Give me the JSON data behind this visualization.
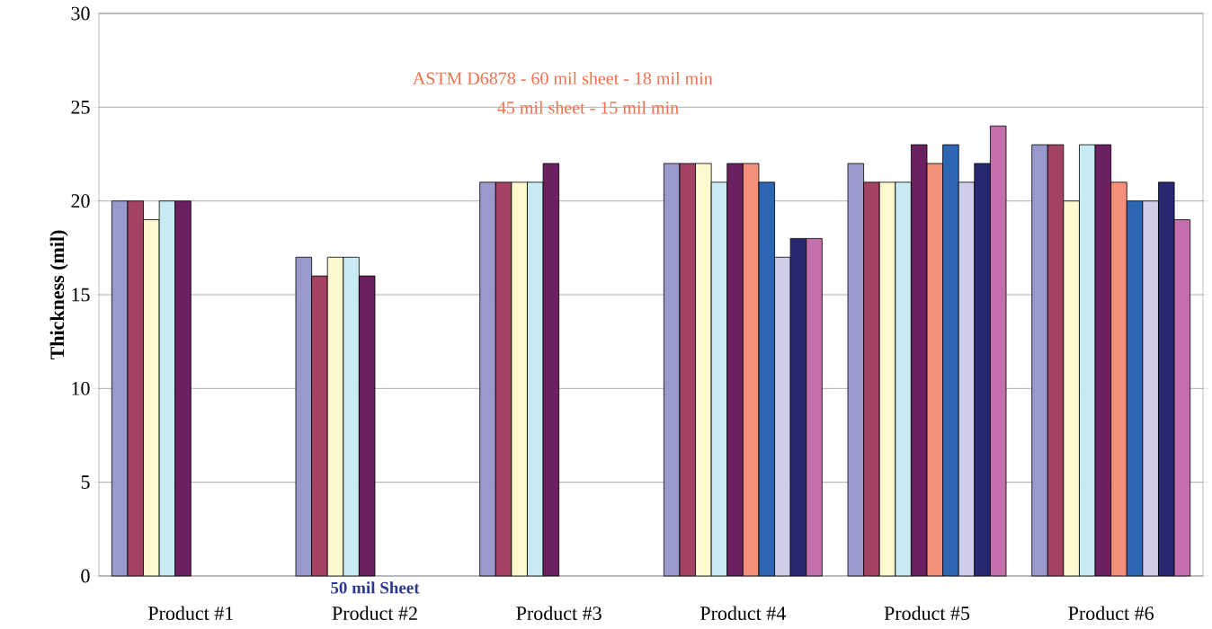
{
  "chart_data": {
    "type": "bar",
    "ylabel": "Thickness (mil)",
    "categories": [
      "Product #1",
      "Product #2",
      "Product #3",
      "Product #4",
      "Product #5",
      "Product #6"
    ],
    "series": [
      {
        "color": "#9999cc",
        "values": [
          20,
          17,
          21,
          22,
          22,
          23
        ]
      },
      {
        "color": "#a34265",
        "values": [
          20,
          16,
          21,
          22,
          21,
          23
        ]
      },
      {
        "color": "#fdf8cd",
        "values": [
          19,
          17,
          21,
          22,
          21,
          20
        ]
      },
      {
        "color": "#c8eaf2",
        "values": [
          20,
          17,
          21,
          21,
          21,
          23
        ]
      },
      {
        "color": "#6b2062",
        "values": [
          20,
          16,
          22,
          22,
          23,
          23
        ]
      },
      {
        "color": "#f48f7c",
        "values": [
          null,
          null,
          null,
          22,
          22,
          21
        ]
      },
      {
        "color": "#2d66b2",
        "values": [
          null,
          null,
          null,
          21,
          23,
          20
        ]
      },
      {
        "color": "#cfcde8",
        "values": [
          null,
          null,
          null,
          17,
          21,
          20
        ]
      },
      {
        "color": "#282872",
        "values": [
          null,
          null,
          null,
          18,
          22,
          21
        ]
      },
      {
        "color": "#c46eac",
        "values": [
          null,
          null,
          null,
          18,
          24,
          19
        ]
      }
    ],
    "ylim": [
      0,
      30
    ],
    "yticks": [
      0,
      5,
      10,
      15,
      20,
      25,
      30
    ],
    "grid": "y",
    "annotations": [
      "ASTM D6878 - 60 mil sheet - 18 mil min",
      "45 mil sheet - 15 mil min",
      "50 mil Sheet"
    ]
  }
}
